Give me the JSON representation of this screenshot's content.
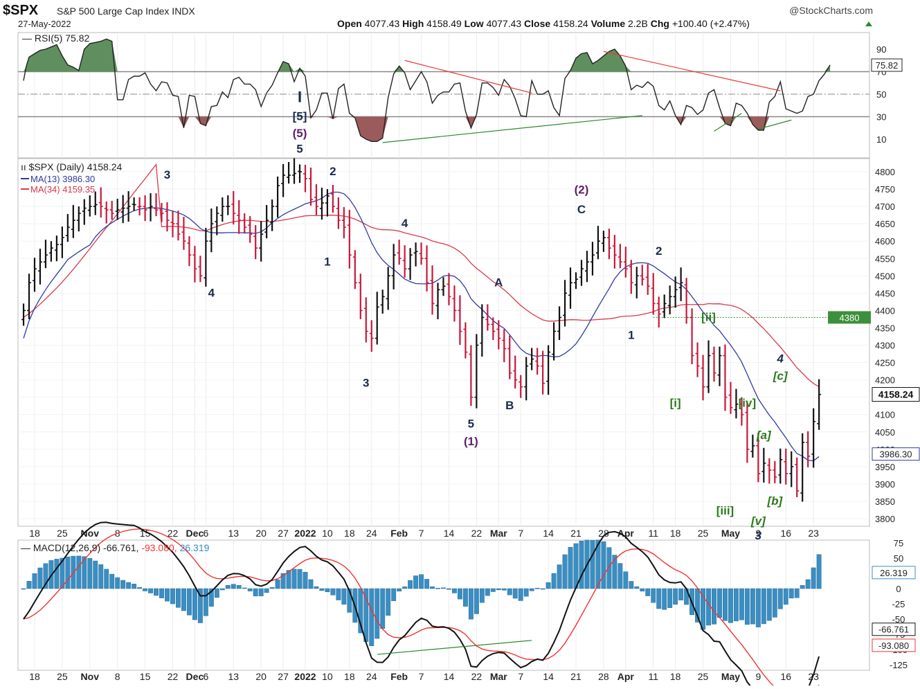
{
  "header": {
    "symbol": "$SPX",
    "description": "S&P 500 Large Cap Index",
    "exchange": "INDX",
    "date": "27-May-2022",
    "watermark": "@StockCharts.com",
    "quote": {
      "open_label": "Open",
      "open": "4077.43",
      "high_label": "High",
      "high": "4158.49",
      "low_label": "Low",
      "low": "4077.43",
      "close_label": "Close",
      "close": "4158.24",
      "volume_label": "Volume",
      "volume": "2.2B",
      "chg_label": "Chg",
      "chg": "+100.40 (+2.47%)"
    }
  },
  "colors": {
    "up": "#111111",
    "down": "#c8173a",
    "ma13": "#2e3a9e",
    "ma34": "#d63a4a",
    "rsi_pos_fill": "#5f8f5f",
    "rsi_neg_fill": "#9b5b5b",
    "macd_hist": "#3a8ec2",
    "signal": "#e33",
    "trend_red": "#e33",
    "trend_green": "#2a8a2a",
    "wave_black": "#1a2a4a",
    "wave_purple": "#5b1f6a",
    "wave_green": "#2a7a1a"
  },
  "x_axis": {
    "labels": [
      {
        "i": 1,
        "t": "18",
        "bold": false
      },
      {
        "i": 6,
        "t": "25",
        "bold": false
      },
      {
        "i": 11,
        "t": "Nov",
        "bold": true
      },
      {
        "i": 16,
        "t": "8",
        "bold": false
      },
      {
        "i": 21,
        "t": "15",
        "bold": false
      },
      {
        "i": 26,
        "t": "22",
        "bold": false
      },
      {
        "i": 30,
        "t": "Dec",
        "bold": true
      },
      {
        "i": 32,
        "t": "6",
        "bold": false
      },
      {
        "i": 37,
        "t": "13",
        "bold": false
      },
      {
        "i": 42,
        "t": "20",
        "bold": false
      },
      {
        "i": 46,
        "t": "27",
        "bold": false
      },
      {
        "i": 50,
        "t": "2022",
        "bold": true
      },
      {
        "i": 54,
        "t": "10",
        "bold": false
      },
      {
        "i": 58,
        "t": "18",
        "bold": false
      },
      {
        "i": 62,
        "t": "24",
        "bold": false
      },
      {
        "i": 67,
        "t": "Feb",
        "bold": true
      },
      {
        "i": 71,
        "t": "7",
        "bold": false
      },
      {
        "i": 76,
        "t": "14",
        "bold": false
      },
      {
        "i": 81,
        "t": "22",
        "bold": false
      },
      {
        "i": 85,
        "t": "Mar",
        "bold": true
      },
      {
        "i": 89,
        "t": "7",
        "bold": false
      },
      {
        "i": 94,
        "t": "14",
        "bold": false
      },
      {
        "i": 99,
        "t": "21",
        "bold": false
      },
      {
        "i": 104,
        "t": "28",
        "bold": false
      },
      {
        "i": 108,
        "t": "Apr",
        "bold": true
      },
      {
        "i": 113,
        "t": "11",
        "bold": false
      },
      {
        "i": 117,
        "t": "18",
        "bold": false
      },
      {
        "i": 122,
        "t": "25",
        "bold": false
      },
      {
        "i": 127,
        "t": "May",
        "bold": true
      },
      {
        "i": 132,
        "t": "9",
        "bold": false
      },
      {
        "i": 137,
        "t": "16",
        "bold": false
      },
      {
        "i": 142,
        "t": "23",
        "bold": false
      }
    ]
  },
  "rsi_panel": {
    "legend": "RSI(5) 75.82",
    "current": "75.82",
    "levels": [
      90,
      70,
      50,
      30,
      10
    ],
    "overbought": 70,
    "oversold": 30,
    "mid": 50,
    "trendlines": [
      {
        "color": "red",
        "points": [
          [
            68,
            80
          ],
          [
            91,
            51
          ]
        ]
      },
      {
        "color": "red",
        "points": [
          [
            104,
            88
          ],
          [
            136,
            53
          ]
        ]
      },
      {
        "color": "green",
        "points": [
          [
            64,
            7
          ],
          [
            111,
            31
          ]
        ]
      },
      {
        "color": "green",
        "points": [
          [
            124,
            17
          ],
          [
            129,
            33
          ]
        ]
      },
      {
        "color": "green",
        "points": [
          [
            132,
            19
          ],
          [
            138,
            27
          ]
        ]
      }
    ]
  },
  "price_panel": {
    "legend": "$SPX (Daily) 4158.24",
    "ma13_legend": "MA(13) 3986.30",
    "ma34_legend": "MA(34) 4159.35",
    "ylim": [
      3780,
      4840
    ],
    "y_ticks": [
      4800,
      4750,
      4700,
      4650,
      4600,
      4550,
      4500,
      4450,
      4400,
      4350,
      4300,
      4250,
      4200,
      4150,
      4100,
      4050,
      4000,
      3950,
      3900,
      3850,
      3800
    ],
    "badges": {
      "close": "4158.24",
      "ma13": "3986.30",
      "level": "4380"
    },
    "level_line": {
      "value": 4380,
      "from_i": 113
    },
    "wave_labels": [
      {
        "t": "3",
        "i": 26,
        "v": 4780,
        "c": "black",
        "italic": false
      },
      {
        "t": "4",
        "i": 34,
        "v": 4440,
        "c": "black",
        "italic": false
      },
      {
        "t": "I",
        "i": 50,
        "v": 4855,
        "c": "black",
        "italic": false,
        "size": 22,
        "panel": "rsi",
        "rsi_v": 43
      },
      {
        "t": "[5]",
        "i": 50,
        "v": 4855,
        "c": "black",
        "italic": false,
        "panel": "rsi",
        "rsi_v": 27
      },
      {
        "t": "(5)",
        "i": 50,
        "v": 4855,
        "c": "purple",
        "italic": false,
        "panel": "rsi",
        "rsi_v": 12
      },
      {
        "t": "5",
        "i": 50,
        "v": 4855,
        "c": "black",
        "italic": false,
        "panel": "rsi",
        "rsi_v": -2
      },
      {
        "t": "2",
        "i": 56,
        "v": 4790,
        "c": "black",
        "italic": false
      },
      {
        "t": "1",
        "i": 55,
        "v": 4530,
        "c": "black",
        "italic": false
      },
      {
        "t": "3",
        "i": 62,
        "v": 4180,
        "c": "black",
        "italic": false
      },
      {
        "t": "4",
        "i": 69,
        "v": 4640,
        "c": "black",
        "italic": false
      },
      {
        "t": "A",
        "i": 86,
        "v": 4470,
        "c": "black",
        "italic": false
      },
      {
        "t": "5",
        "i": 81,
        "v": 4062,
        "c": "black",
        "italic": false
      },
      {
        "t": "(1)",
        "i": 81,
        "v": 4012,
        "c": "purple",
        "italic": false
      },
      {
        "t": "B",
        "i": 88,
        "v": 4115,
        "c": "black",
        "italic": false
      },
      {
        "t": "(2)",
        "i": 101,
        "v": 4737,
        "c": "purple",
        "italic": false
      },
      {
        "t": "C",
        "i": 101,
        "v": 4680,
        "c": "black",
        "italic": false
      },
      {
        "t": "2",
        "i": 115,
        "v": 4560,
        "c": "black",
        "italic": false
      },
      {
        "t": "1",
        "i": 110,
        "v": 4318,
        "c": "black",
        "italic": false
      },
      {
        "t": "[ii]",
        "i": 124,
        "v": 4370,
        "c": "green",
        "italic": false
      },
      {
        "t": "[i]",
        "i": 118,
        "v": 4122,
        "c": "green",
        "italic": false
      },
      {
        "t": "[iv]",
        "i": 131,
        "v": 4122,
        "c": "green",
        "italic": false
      },
      {
        "t": "[iii]",
        "i": 127,
        "v": 3812,
        "c": "green",
        "italic": false
      },
      {
        "t": "4",
        "i": 137,
        "v": 4250,
        "c": "black",
        "italic": true
      },
      {
        "t": "[c]",
        "i": 137,
        "v": 4200,
        "c": "green",
        "italic": true
      },
      {
        "t": "[a]",
        "i": 134,
        "v": 4030,
        "c": "green",
        "italic": true
      },
      {
        "t": "[b]",
        "i": 136,
        "v": 3840,
        "c": "green",
        "italic": true
      },
      {
        "t": "[v]",
        "i": 133,
        "v": 3782,
        "c": "green",
        "italic": true
      },
      {
        "t": "3",
        "i": 133,
        "v": 3740,
        "c": "black",
        "italic": true
      }
    ]
  },
  "macd_panel": {
    "legend_label": "MACD(12,26,9)",
    "macd": "-66.761",
    "signal": "-93.080",
    "hist": "26.319",
    "ylim": [
      -140,
      85
    ],
    "y_ticks": [
      75,
      50,
      25,
      0,
      -25,
      -50,
      -75,
      -100,
      -125
    ],
    "trendline": {
      "points": [
        [
          63,
          -108
        ],
        [
          91,
          -85
        ]
      ]
    }
  },
  "chart_data": {
    "type": "ohlc",
    "title": "$SPX S&P 500 Large Cap Index INDX",
    "series": [
      {
        "name": "$SPX",
        "close": [
          4400,
          4480,
          4520,
          4540,
          4560,
          4580,
          4590,
          4610,
          4640,
          4660,
          4680,
          4695,
          4700,
          4705,
          4700,
          4690,
          4680,
          4690,
          4695,
          4700,
          4705,
          4700,
          4690,
          4700,
          4690,
          4680,
          4660,
          4650,
          4620,
          4600,
          4560,
          4520,
          4500,
          4600,
          4650,
          4680,
          4700,
          4700,
          4680,
          4660,
          4640,
          4620,
          4580,
          4620,
          4660,
          4700,
          4760,
          4790,
          4790,
          4795,
          4800,
          4780,
          4720,
          4700,
          4710,
          4730,
          4700,
          4660,
          4640,
          4560,
          4480,
          4400,
          4340,
          4320,
          4410,
          4440,
          4500,
          4560,
          4550,
          4520,
          4560,
          4570,
          4550,
          4480,
          4420,
          4460,
          4470,
          4440,
          4400,
          4340,
          4280,
          4150,
          4300,
          4380,
          4360,
          4340,
          4320,
          4290,
          4220,
          4200,
          4180,
          4240,
          4260,
          4240,
          4190,
          4280,
          4340,
          4380,
          4450,
          4480,
          4490,
          4520,
          4540,
          4560,
          4600,
          4610,
          4580,
          4560,
          4540,
          4520,
          4480,
          4500,
          4490,
          4470,
          4420,
          4390,
          4420,
          4440,
          4460,
          4480,
          4380,
          4270,
          4240,
          4180,
          4270,
          4220,
          4270,
          4150,
          4120,
          4130,
          4100,
          4000,
          4010,
          3930,
          3960,
          3940,
          3920,
          3970,
          3930,
          3950,
          3880,
          4020,
          3980,
          4080,
          4158
        ]
      },
      {
        "name": "MA(13)",
        "values": [
          3986.3
        ]
      },
      {
        "name": "MA(34)",
        "values": [
          4159.35
        ]
      }
    ],
    "ylim": [
      3780,
      4840
    ],
    "xlabel": "",
    "ylabel": ""
  }
}
